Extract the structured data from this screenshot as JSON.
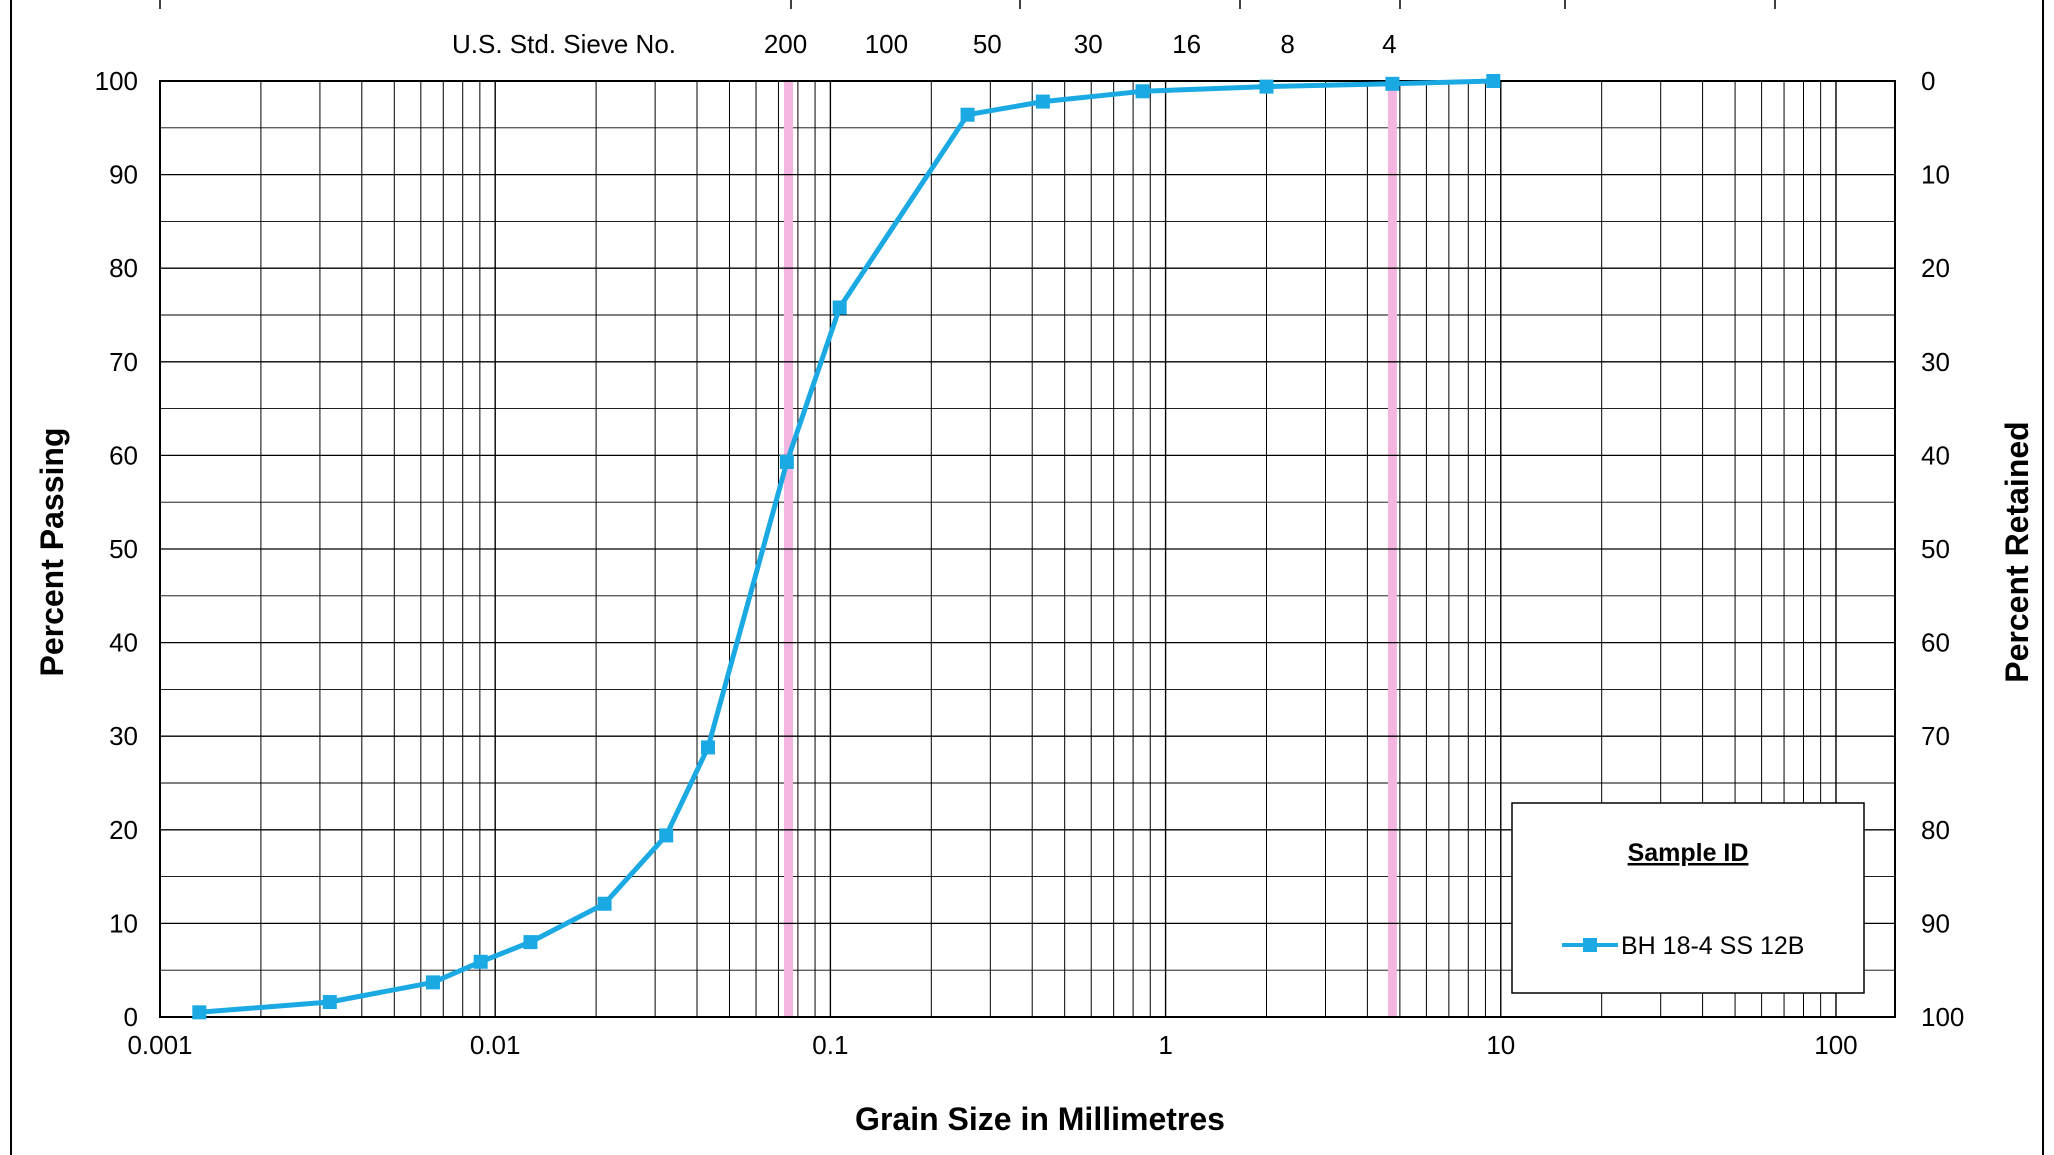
{
  "chart_data": {
    "type": "line",
    "xlabel": "Grain Size in Millimetres",
    "ylabel": "Percent Passing",
    "y2label": "Percent Retained",
    "x_scale": "log",
    "xlim": [
      0.001,
      150
    ],
    "ylim": [
      0,
      100
    ],
    "y2lim": [
      100,
      0
    ],
    "grid": true,
    "x_ticks": [
      "0.001",
      "0.01",
      "0.1",
      "1",
      "10",
      "100"
    ],
    "y_ticks": [
      "0",
      "10",
      "20",
      "30",
      "40",
      "50",
      "60",
      "70",
      "80",
      "90",
      "100"
    ],
    "y2_ticks": [
      "100",
      "90",
      "80",
      "70",
      "60",
      "50",
      "40",
      "30",
      "20",
      "10",
      "0"
    ],
    "sieve_header": {
      "label": "U.S. Std. Sieve No.",
      "sieves": [
        {
          "label": "200",
          "size": 0.075
        },
        {
          "label": "100",
          "size": 0.15
        },
        {
          "label": "50",
          "size": 0.3
        },
        {
          "label": "30",
          "size": 0.6
        },
        {
          "label": "16",
          "size": 1.18
        },
        {
          "label": "8",
          "size": 2.36
        },
        {
          "label": "4",
          "size": 4.75
        }
      ]
    },
    "reference_lines": [
      {
        "x": 0.075,
        "color": "#f4b6e0"
      },
      {
        "x": 4.75,
        "color": "#f4b6e0"
      }
    ],
    "legend": {
      "title": "Sample ID",
      "position": "bottom-right"
    },
    "series": [
      {
        "name": "BH 18-4 SS 12B",
        "color": "#1aa9e3",
        "x": [
          0.00131,
          0.00321,
          0.00652,
          0.00905,
          0.01274,
          0.0212,
          0.03237,
          0.04314,
          0.07415,
          0.1066,
          0.2566,
          0.4304,
          0.8536,
          2.0,
          4.75,
          9.5
        ],
        "y": [
          0.5,
          1.6,
          3.7,
          5.9,
          8.0,
          12.1,
          19.4,
          28.8,
          59.3,
          75.8,
          96.4,
          97.8,
          98.9,
          99.4,
          99.7,
          100.0
        ]
      }
    ]
  }
}
